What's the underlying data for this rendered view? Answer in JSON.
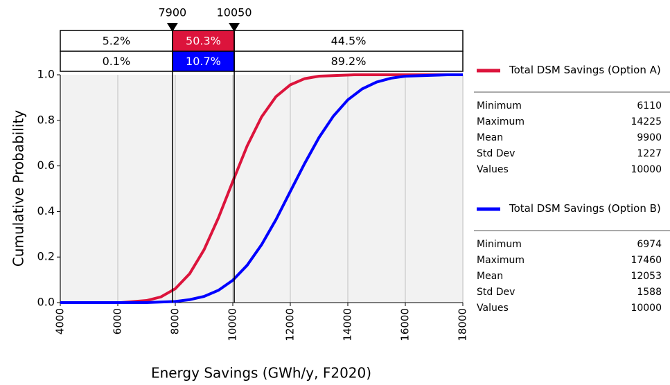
{
  "chart_data": {
    "type": "line",
    "xlabel": "Energy Savings (GWh/y, F2020)",
    "ylabel": "Cumulative Probability",
    "xlim": [
      4000,
      18000
    ],
    "xticks": [
      4000,
      6000,
      8000,
      10000,
      12000,
      14000,
      16000,
      18000
    ],
    "ylim": [
      0,
      1
    ],
    "yticks": [
      {
        "value": 0,
        "label": "0.0"
      },
      {
        "value": 0.2,
        "label": "0.2"
      },
      {
        "value": 0.4,
        "label": "0.4"
      },
      {
        "value": 0.6,
        "label": "0.6"
      },
      {
        "value": 0.8,
        "label": "0.8"
      },
      {
        "value": 1,
        "label": "1.0"
      }
    ],
    "grid": true,
    "markers": [
      7900,
      10050
    ],
    "bands": [
      {
        "color": "#dc143c",
        "values": [
          5.2,
          50.3,
          44.5
        ],
        "value_labels": [
          "5.2%",
          "50.3%",
          "44.5%"
        ]
      },
      {
        "color": "#0000ff",
        "values": [
          0.1,
          10.7,
          89.2
        ],
        "value_labels": [
          "0.1%",
          "10.7%",
          "89.2%"
        ]
      }
    ],
    "series": [
      {
        "name": "Total DSM Savings (Option A)",
        "color": "#dc143c",
        "x": [
          4000,
          6110,
          7000,
          7500,
          8000,
          8500,
          9000,
          9500,
          10000,
          10500,
          11000,
          11500,
          12000,
          12500,
          13000,
          14225,
          18000
        ],
        "values": [
          0,
          0,
          0.009,
          0.025,
          0.061,
          0.127,
          0.232,
          0.372,
          0.532,
          0.688,
          0.815,
          0.904,
          0.956,
          0.983,
          0.994,
          1,
          1
        ],
        "stats": {
          "labels": [
            "Minimum",
            "Maximum",
            "Mean",
            "Std Dev",
            "Values"
          ],
          "values": [
            6110,
            14225,
            9900,
            1227,
            10000
          ]
        }
      },
      {
        "name": "Total DSM Savings (Option B)",
        "color": "#0000ff",
        "x": [
          4000,
          6974,
          8000,
          8500,
          9000,
          9500,
          10000,
          10500,
          11000,
          11500,
          12000,
          12500,
          13000,
          13500,
          14000,
          14500,
          15000,
          15500,
          16000,
          17460,
          18000
        ],
        "values": [
          0,
          0,
          0.005,
          0.013,
          0.027,
          0.054,
          0.098,
          0.164,
          0.254,
          0.364,
          0.488,
          0.611,
          0.725,
          0.819,
          0.89,
          0.938,
          0.968,
          0.985,
          0.994,
          1,
          1
        ],
        "stats": {
          "labels": [
            "Minimum",
            "Maximum",
            "Mean",
            "Std Dev",
            "Values"
          ],
          "values": [
            6974,
            17460,
            12053,
            1588,
            10000
          ]
        }
      }
    ]
  }
}
